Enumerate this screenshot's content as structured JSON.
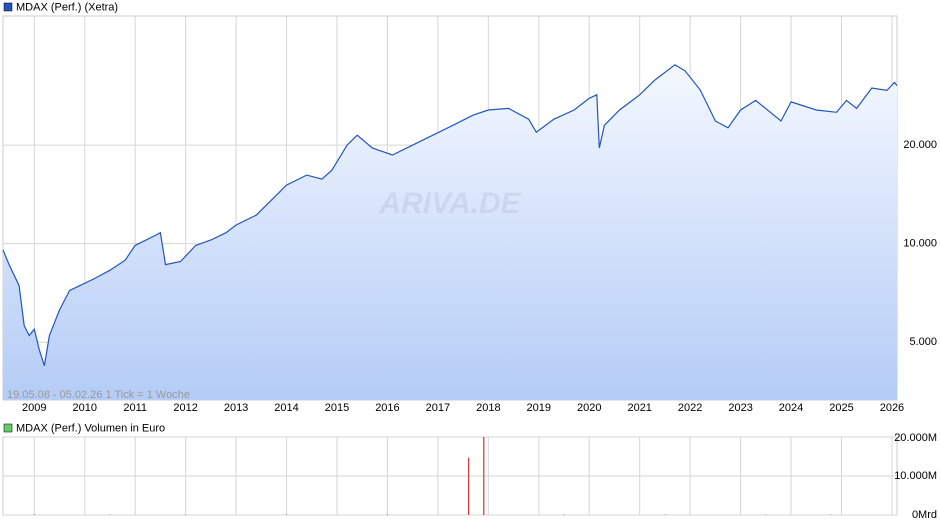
{
  "chart_data": [
    {
      "type": "area",
      "log": true,
      "grid": true,
      "note": "19.05.08 - 05.02.26   1 Tick = 1 Woche",
      "watermark": "ARIVA.DE",
      "series": [
        {
          "name": "MDAX (Perf.) (Xetra)",
          "color": "#2255bb",
          "x": [
            2008.38,
            2008.5,
            2008.7,
            2008.8,
            2008.9,
            2009.0,
            2009.1,
            2009.2,
            2009.3,
            2009.5,
            2009.7,
            2009.9,
            2010.2,
            2010.5,
            2010.8,
            2011.0,
            2011.4,
            2011.5,
            2011.6,
            2011.9,
            2012.2,
            2012.5,
            2012.8,
            2013.0,
            2013.4,
            2013.8,
            2014.0,
            2014.4,
            2014.7,
            2014.9,
            2015.2,
            2015.4,
            2015.7,
            2016.1,
            2016.5,
            2016.9,
            2017.3,
            2017.7,
            2018.0,
            2018.4,
            2018.8,
            2018.95,
            2019.3,
            2019.7,
            2020.0,
            2020.15,
            2020.2,
            2020.3,
            2020.6,
            2021.0,
            2021.3,
            2021.7,
            2021.9,
            2022.2,
            2022.5,
            2022.75,
            2023.0,
            2023.3,
            2023.8,
            2024.0,
            2024.5,
            2024.9,
            2025.1,
            2025.3,
            2025.6,
            2025.9,
            2026.05,
            2026.1
          ],
          "values": [
            9570,
            8630,
            7440,
            5620,
            5240,
            5480,
            4740,
            4240,
            5240,
            6270,
            7200,
            7440,
            7830,
            8300,
            8900,
            9880,
            10600,
            10800,
            8630,
            8820,
            9880,
            10260,
            10800,
            11400,
            12230,
            14060,
            15100,
            16200,
            15750,
            16770,
            20000,
            21450,
            19600,
            18660,
            20000,
            21450,
            23000,
            24700,
            25600,
            25900,
            24000,
            21900,
            24000,
            25600,
            27800,
            28500,
            19600,
            23000,
            25600,
            28500,
            31600,
            35200,
            33700,
            29500,
            23700,
            22600,
            25600,
            27400,
            23700,
            27100,
            25600,
            25200,
            27400,
            25900,
            29900,
            29400,
            31100,
            30400
          ]
        }
      ],
      "xlim": [
        2008.38,
        2026.1
      ],
      "xticks": [
        2009,
        2010,
        2011,
        2012,
        2013,
        2014,
        2015,
        2016,
        2017,
        2018,
        2019,
        2020,
        2021,
        2022,
        2023,
        2024,
        2025,
        2026
      ],
      "ylim": [
        3330,
        49600
      ],
      "yticks": [
        {
          "value": 5000,
          "label": "5.000"
        },
        {
          "value": 10000,
          "label": "10.000"
        },
        {
          "value": 20000,
          "label": "20.000"
        }
      ]
    },
    {
      "type": "bar",
      "grid": true,
      "series": [
        {
          "name": "MDAX (Perf.) Volumen in Euro",
          "color": "#cc3333",
          "x": [
            2009.0,
            2010.5,
            2012.0,
            2014.0,
            2016.0,
            2017.61,
            2017.91,
            2019.5,
            2021.5,
            2023.5,
            2024.8
          ],
          "values": [
            150,
            120,
            100,
            110,
            130,
            14700,
            20000,
            120,
            110,
            100,
            90
          ]
        }
      ],
      "xlim": [
        2008.38,
        2026.1
      ],
      "ylim": [
        0,
        20000
      ],
      "yticks": [
        {
          "value": 0,
          "label": "0Mrd"
        },
        {
          "value": 10000,
          "label": "10.000M"
        },
        {
          "value": 20000,
          "label": "20.000M"
        }
      ]
    }
  ]
}
